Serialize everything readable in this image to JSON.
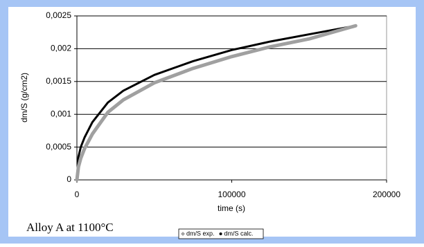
{
  "chart_data": {
    "type": "line",
    "ylabel": "dm/S (g/cm2)",
    "xlabel": "time (s)",
    "annotation": "Alloy A at 1100°C",
    "x": [
      0,
      1000,
      2500,
      5000,
      10000,
      20000,
      30000,
      50000,
      75000,
      100000,
      125000,
      150000,
      180000
    ],
    "series": [
      {
        "name": "dm/S calc.",
        "color": "#000000",
        "marker": "dot",
        "values": [
          0,
          0.00035,
          0.0005,
          0.00065,
          0.00088,
          0.00118,
          0.00136,
          0.0016,
          0.00181,
          0.00198,
          0.00211,
          0.00222,
          0.00235
        ]
      },
      {
        "name": "dm/S exp.",
        "color": "#a0a0a0",
        "marker": "diamond",
        "values": [
          0,
          0.0002,
          0.00033,
          0.00048,
          0.0007,
          0.00103,
          0.00122,
          0.00148,
          0.0017,
          0.00188,
          0.00203,
          0.00215,
          0.00235
        ]
      }
    ],
    "legend_order": [
      1,
      0
    ],
    "xlim": [
      0,
      200000
    ],
    "xticks": [
      0,
      100000,
      200000
    ],
    "ylim": [
      0,
      0.0025
    ],
    "yticks": [
      0,
      {
        "value": 0.0005,
        "label": "0,0005"
      },
      {
        "value": 0.001,
        "label": "0,001"
      },
      {
        "value": 0.0015,
        "label": "0,0015"
      },
      {
        "value": 0.002,
        "label": "0,002"
      },
      {
        "value": 0.0025,
        "label": "0,0025"
      }
    ],
    "grid": true
  }
}
